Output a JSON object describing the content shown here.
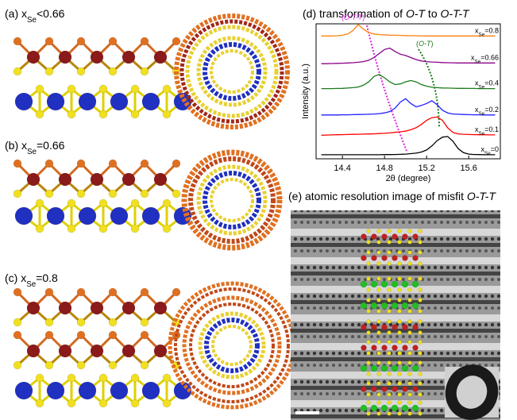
{
  "panels": [
    {
      "label": "(a) xSe<0.66"
    },
    {
      "label": "(b) xSe=0.66"
    },
    {
      "label": "(c) xSe=0.8"
    },
    {
      "label": "(e) atomic resolution image of misfit O-T-T"
    }
  ],
  "chart_data": {
    "type": "line",
    "title": "(d) transformation of O-T to O-T-T",
    "xlabel": "2θ (degree)",
    "ylabel": "Intensity (a.u.)",
    "annotations": [
      {
        "text": "(O-T-T)",
        "color": "#e020e0"
      },
      {
        "text": "(O-T)",
        "color": "#1a7a1a"
      }
    ],
    "x": [
      14.2,
      14.25,
      14.3,
      14.35,
      14.4,
      14.45,
      14.5,
      14.55,
      14.6,
      14.65,
      14.7,
      14.75,
      14.8,
      14.85,
      14.9,
      14.95,
      15.0,
      15.05,
      15.1,
      15.15,
      15.2,
      15.25,
      15.3,
      15.35,
      15.4,
      15.45,
      15.5,
      15.55,
      15.6,
      15.65,
      15.7,
      15.75,
      15.8,
      15.85
    ],
    "xlim": [
      14.15,
      15.9
    ],
    "xticks": [
      14.4,
      14.8,
      15.2,
      15.6
    ],
    "ylim": [
      0,
      10
    ],
    "series": [
      {
        "name": "xSe=0.8",
        "color": "#ff7f0e",
        "values": [
          9.1,
          9.1,
          9.1,
          9.12,
          9.15,
          9.25,
          9.5,
          9.95,
          9.6,
          9.35,
          9.25,
          9.2,
          9.18,
          9.16,
          9.15,
          9.14,
          9.13,
          9.12,
          9.12,
          9.11,
          9.1,
          9.1,
          9.1,
          9.1,
          9.1,
          9.1,
          9.1,
          9.1,
          9.1,
          9.1,
          9.1,
          9.1,
          9.1,
          9.1
        ]
      },
      {
        "name": "xSe=0.66",
        "color": "#8b008b",
        "values": [
          7.05,
          7.05,
          7.06,
          7.07,
          7.08,
          7.1,
          7.12,
          7.15,
          7.2,
          7.3,
          7.5,
          7.8,
          8.1,
          8.2,
          7.95,
          7.75,
          7.65,
          7.5,
          7.35,
          7.25,
          7.2,
          7.17,
          7.15,
          7.13,
          7.12,
          7.11,
          7.1,
          7.1,
          7.1,
          7.1,
          7.1,
          7.1,
          7.1,
          7.1
        ]
      },
      {
        "name": "xSe=0.4",
        "color": "#1a7a1a",
        "values": [
          5.2,
          5.2,
          5.2,
          5.21,
          5.22,
          5.24,
          5.27,
          5.32,
          5.45,
          5.7,
          6.1,
          6.25,
          6.0,
          5.7,
          5.5,
          5.55,
          5.7,
          5.8,
          5.7,
          5.5,
          5.38,
          5.3,
          5.27,
          5.25,
          5.24,
          5.23,
          5.22,
          5.22,
          5.21,
          5.21,
          5.2,
          5.2,
          5.2,
          5.2
        ]
      },
      {
        "name": "xSe=0.2",
        "color": "#1f1fff",
        "values": [
          3.25,
          3.25,
          3.25,
          3.25,
          3.26,
          3.26,
          3.27,
          3.28,
          3.29,
          3.3,
          3.32,
          3.35,
          3.4,
          3.5,
          3.75,
          4.2,
          4.45,
          4.1,
          3.85,
          3.95,
          4.1,
          4.3,
          4.0,
          3.6,
          3.4,
          3.32,
          3.3,
          3.28,
          3.27,
          3.26,
          3.26,
          3.25,
          3.25,
          3.25
        ]
      },
      {
        "name": "xSe=0.1",
        "color": "#ff0000",
        "values": [
          1.75,
          1.76,
          1.77,
          1.78,
          1.79,
          1.8,
          1.81,
          1.82,
          1.83,
          1.84,
          1.85,
          1.87,
          1.89,
          1.92,
          1.96,
          2.0,
          2.05,
          2.15,
          2.3,
          2.55,
          2.85,
          3.05,
          3.1,
          2.85,
          2.3,
          1.95,
          1.85,
          1.82,
          1.8,
          1.79,
          1.78,
          1.78,
          1.77,
          1.77
        ]
      },
      {
        "name": "xSe=0",
        "color": "#000000",
        "values": [
          0.3,
          0.3,
          0.3,
          0.3,
          0.3,
          0.3,
          0.3,
          0.3,
          0.3,
          0.3,
          0.3,
          0.3,
          0.31,
          0.31,
          0.32,
          0.33,
          0.35,
          0.38,
          0.42,
          0.5,
          0.65,
          0.95,
          1.35,
          1.6,
          1.65,
          1.3,
          0.75,
          0.45,
          0.35,
          0.32,
          0.31,
          0.3,
          0.3,
          0.3
        ]
      }
    ]
  }
}
